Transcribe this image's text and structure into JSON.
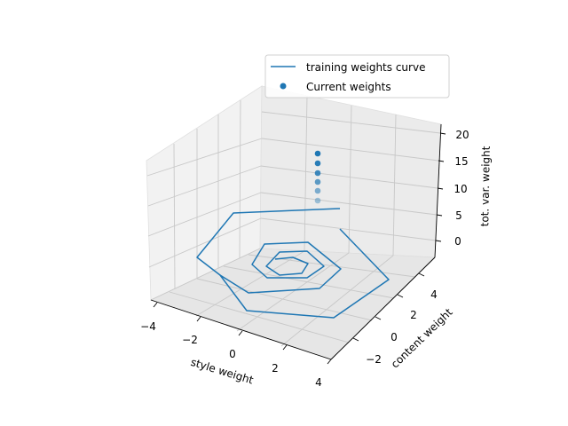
{
  "chart_data": {
    "type": "line3d",
    "xlabel": "style weight",
    "ylabel": "content weight",
    "zlabel": "tot. var. weight",
    "xticks": [
      "−4",
      "−2",
      "0",
      "2",
      "4"
    ],
    "yticks": [
      "−2",
      "0",
      "2",
      "4"
    ],
    "zticks": [
      "0",
      "5",
      "10",
      "15",
      "20"
    ],
    "xlim": [
      -4,
      4
    ],
    "ylim": [
      -3.5,
      5.5
    ],
    "zlim": [
      -3,
      21
    ],
    "grid": true,
    "legend_position": "top-right",
    "series": [
      {
        "name": "training weights curve",
        "kind": "line",
        "color": "#1f77b4",
        "points_2d": [
          [
            383,
            235
          ],
          [
            263,
            240
          ],
          [
            222,
            290
          ],
          [
            248,
            310
          ],
          [
            278,
            350
          ],
          [
            376,
            358
          ],
          [
            438,
            315
          ],
          [
            383,
            258
          ]
        ],
        "inner_spiral_2d": [
          [
            248,
            310
          ],
          [
            280,
            330
          ],
          [
            360,
            325
          ],
          [
            384,
            303
          ],
          [
            347,
            273
          ],
          [
            298,
            275
          ],
          [
            284,
            298
          ],
          [
            301,
            313
          ],
          [
            346,
            313
          ],
          [
            365,
            300
          ],
          [
            346,
            283
          ],
          [
            315,
            284
          ],
          [
            300,
            300
          ],
          [
            315,
            310
          ],
          [
            340,
            308
          ],
          [
            347,
            297
          ],
          [
            330,
            290
          ],
          [
            310,
            292
          ]
        ]
      },
      {
        "name": "Current weights",
        "kind": "scatter",
        "color": "#1f77b4",
        "points_2d": [
          [
            358,
            173
          ],
          [
            358,
            184
          ],
          [
            358,
            195
          ],
          [
            358,
            205
          ],
          [
            358,
            215
          ],
          [
            358,
            226
          ]
        ],
        "alphas": [
          1.0,
          0.95,
          0.85,
          0.7,
          0.55,
          0.4
        ]
      }
    ]
  }
}
